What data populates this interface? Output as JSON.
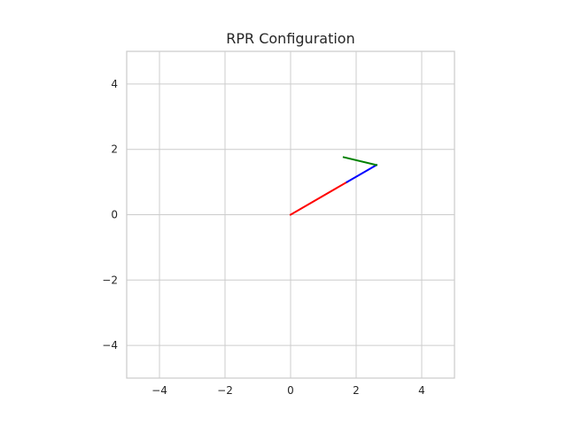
{
  "chart_data": {
    "type": "line",
    "title": "RPR Configuration",
    "xlabel": "",
    "ylabel": "",
    "xlim": [
      -5,
      5
    ],
    "ylim": [
      -5,
      5
    ],
    "xticks": [
      -4,
      -2,
      0,
      2,
      4
    ],
    "yticks": [
      -4,
      -2,
      0,
      2,
      4
    ],
    "xtick_labels": [
      "−4",
      "−2",
      "0",
      "2",
      "4"
    ],
    "ytick_labels": [
      "−4",
      "−2",
      "0",
      "2",
      "4"
    ],
    "grid": true,
    "aspect": "equal",
    "series": [
      {
        "color": "#ff0000",
        "points": [
          [
            0,
            0
          ],
          [
            1.72,
            1.0
          ]
        ]
      },
      {
        "color": "#0000ff",
        "points": [
          [
            1.72,
            1.0
          ],
          [
            2.62,
            1.52
          ]
        ]
      },
      {
        "color": "#008000",
        "points": [
          [
            2.62,
            1.52
          ],
          [
            1.62,
            1.76
          ]
        ]
      }
    ]
  }
}
